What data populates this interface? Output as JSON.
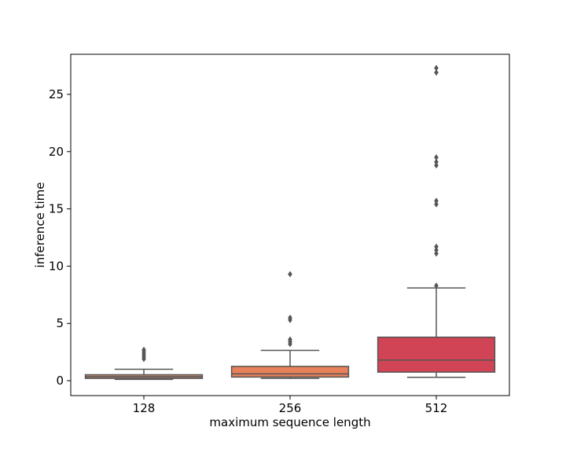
{
  "chart_data": {
    "type": "box",
    "title": "",
    "xlabel": "maximum sequence length",
    "ylabel": "inference time",
    "ylim": [
      -1.3,
      28.5
    ],
    "yticks": [
      0,
      5,
      10,
      15,
      20,
      25
    ],
    "grid": false,
    "categories": [
      "128",
      "256",
      "512"
    ],
    "boxes": [
      {
        "category": "128",
        "whisker_low": 0.12,
        "q1": 0.2,
        "median": 0.35,
        "q3": 0.52,
        "whisker_high": 1.0,
        "outliers": [
          1.9,
          2.1,
          2.3,
          2.5,
          2.7
        ],
        "color": "#c28a6c"
      },
      {
        "category": "256",
        "whisker_low": 0.2,
        "q1": 0.32,
        "median": 0.6,
        "q3": 1.25,
        "whisker_high": 2.65,
        "outliers": [
          3.2,
          3.4,
          3.6,
          5.3,
          5.5,
          9.3
        ],
        "color": "#e8805a"
      },
      {
        "category": "512",
        "whisker_low": 0.3,
        "q1": 0.75,
        "median": 1.8,
        "q3": 3.8,
        "whisker_high": 8.1,
        "outliers": [
          8.3,
          11.1,
          11.4,
          11.7,
          15.4,
          15.7,
          18.8,
          19.1,
          19.5,
          26.9,
          27.3
        ],
        "color": "#d04455"
      }
    ],
    "line_color": "#555555",
    "outlier_color": "#555555"
  }
}
